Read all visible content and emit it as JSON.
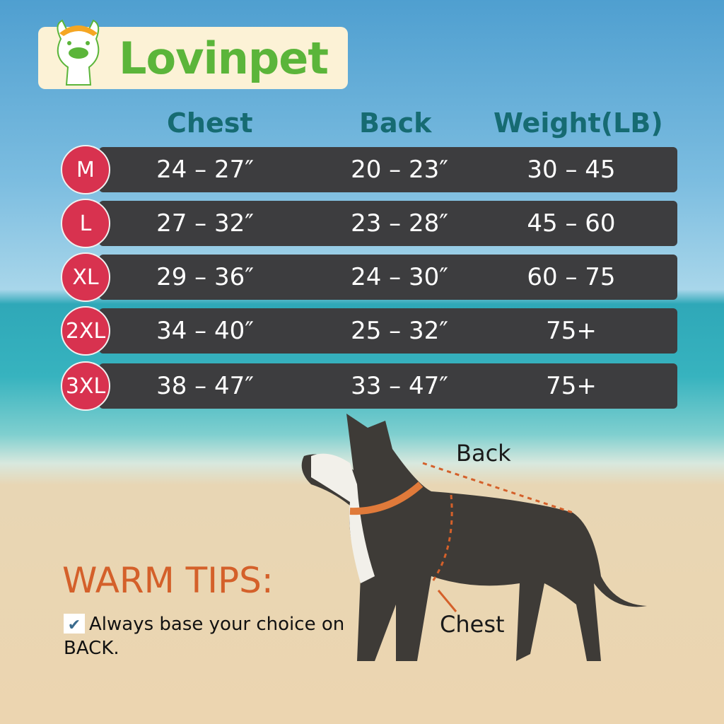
{
  "brand": {
    "name": "Lovinpet"
  },
  "headers": {
    "chest": "Chest",
    "back": "Back",
    "weight": "Weight(LB)"
  },
  "rows": [
    {
      "size": "M",
      "chest": "24 – 27″",
      "back": "20 – 23″",
      "weight": "30 – 45"
    },
    {
      "size": "L",
      "chest": "27 – 32″",
      "back": "23 – 28″",
      "weight": "45 – 60"
    },
    {
      "size": "XL",
      "chest": "29 – 36″",
      "back": "24 – 30″",
      "weight": "60 – 75"
    },
    {
      "size": "2XL",
      "chest": "34 – 40″",
      "back": "25 – 32″",
      "weight": "75+"
    },
    {
      "size": "3XL",
      "chest": "38 – 47″",
      "back": "33 – 47″",
      "weight": "75+"
    }
  ],
  "diagram": {
    "back_label": "Back",
    "chest_label": "Chest"
  },
  "tips": {
    "title": "WARM TIPS:",
    "check_icon": "✔",
    "text": "Always base your choice on BACK."
  },
  "colors": {
    "size_badge": "#d8324f",
    "row_bg": "#3d3d3f",
    "header": "#166b72",
    "tips_title": "#d4602a",
    "brand": "#5bb53a"
  }
}
